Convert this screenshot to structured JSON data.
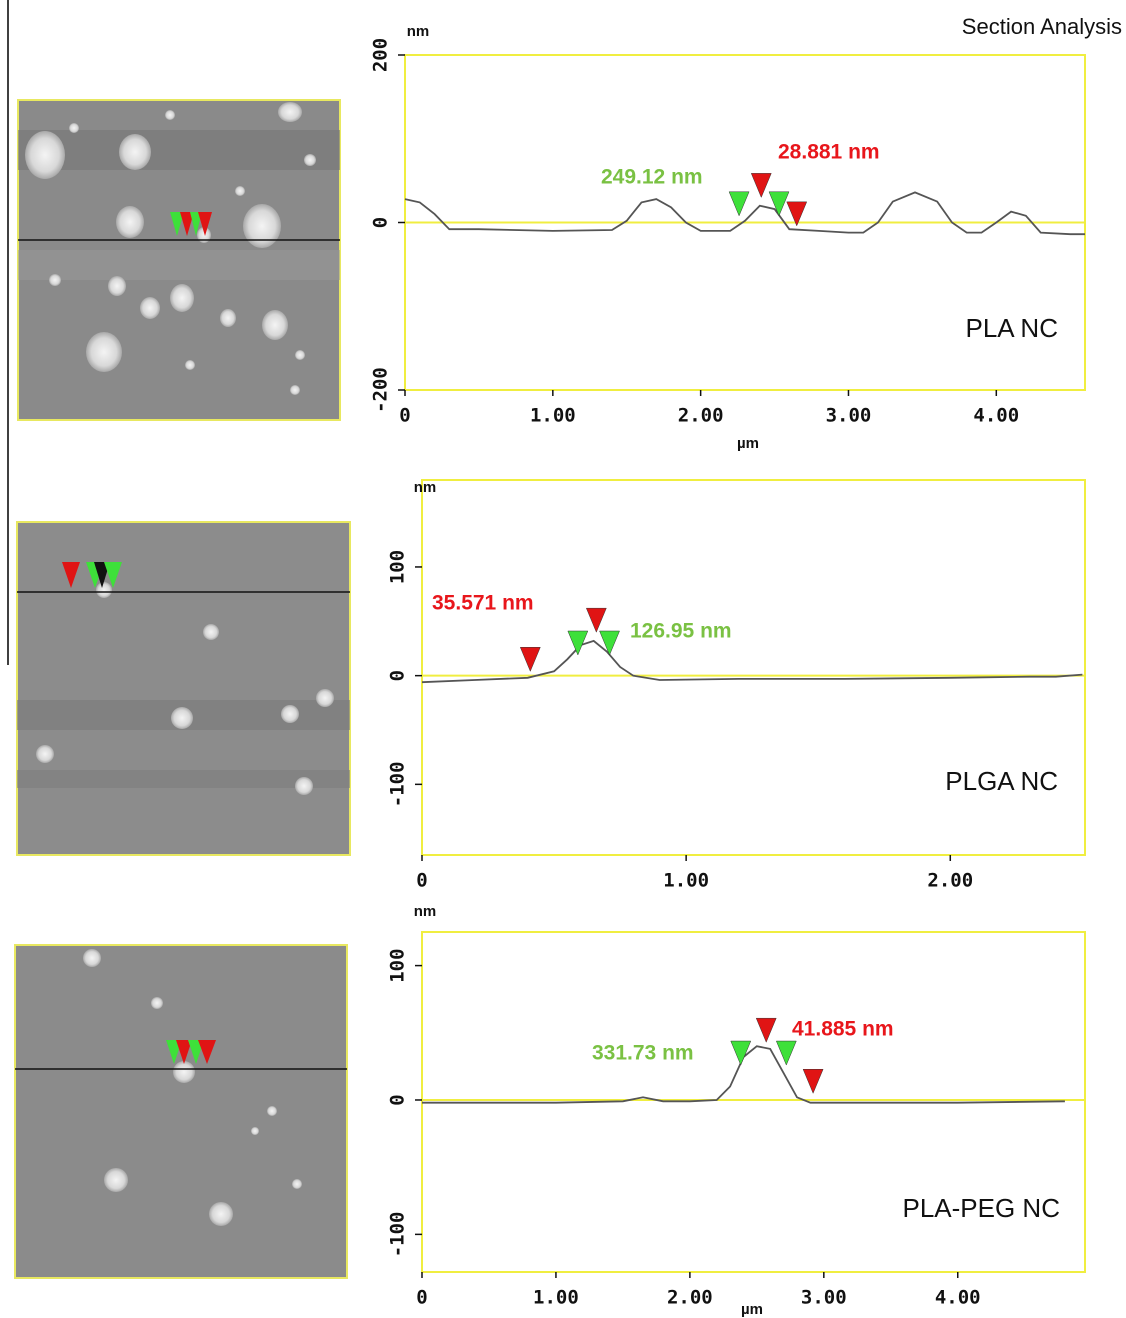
{
  "chart_data": [
    {
      "type": "line",
      "title": "Section Analysis",
      "y_label": "nm",
      "x_label": "µm",
      "sample": "PLA NC",
      "xlim": [
        0,
        4.6
      ],
      "ylim": [
        -200,
        200
      ],
      "xticks": [
        0,
        {
          "value": 1,
          "label": "1.00"
        },
        {
          "value": 2,
          "label": "2.00"
        },
        {
          "value": 3,
          "label": "3.00"
        },
        {
          "value": 4,
          "label": "4.00"
        }
      ],
      "yticks": [
        -200,
        0,
        200
      ],
      "x": [
        0,
        0.1,
        0.2,
        0.3,
        0.5,
        1.0,
        1.4,
        1.5,
        1.6,
        1.7,
        1.8,
        1.9,
        2.0,
        2.2,
        2.3,
        2.4,
        2.5,
        2.6,
        2.8,
        3.0,
        3.1,
        3.2,
        3.3,
        3.45,
        3.6,
        3.7,
        3.8,
        3.9,
        4.0,
        4.1,
        4.2,
        4.3,
        4.5,
        4.6
      ],
      "series": [
        {
          "color": "#555555",
          "values": [
            28,
            24,
            10,
            -8,
            -8,
            -10,
            -9,
            2,
            24,
            28,
            18,
            0,
            -10,
            -10,
            2,
            20,
            16,
            -8,
            -10,
            -12,
            -12,
            0,
            25,
            36,
            25,
            0,
            -12,
            -12,
            0,
            13,
            8,
            -12,
            -14,
            -14
          ]
        }
      ],
      "markers": [
        {
          "x": 2.26,
          "y": 8,
          "color": "#3ee03a"
        },
        {
          "x": 2.41,
          "y": 30,
          "color": "#e01414"
        },
        {
          "x": 2.53,
          "y": 8,
          "color": "#3ee03a"
        },
        {
          "x": 2.65,
          "y": -4,
          "color": "#e01414"
        }
      ],
      "annotations": [
        {
          "text": "249.12 nm",
          "color": "#7ac143"
        },
        {
          "text": "28.881 nm",
          "color": "#e8161b"
        }
      ]
    },
    {
      "type": "line",
      "y_label": "nm",
      "sample": "PLGA NC",
      "xlim": [
        0,
        2.51
      ],
      "ylim": [
        -165,
        180
      ],
      "xticks": [
        0,
        {
          "value": 1,
          "label": "1.00"
        },
        {
          "value": 2,
          "label": "2.00"
        }
      ],
      "yticks": [
        -100,
        0,
        100
      ],
      "x": [
        0,
        0.2,
        0.4,
        0.5,
        0.55,
        0.6,
        0.65,
        0.7,
        0.75,
        0.8,
        0.9,
        1.2,
        1.6,
        2.0,
        2.3,
        2.4,
        2.5
      ],
      "series": [
        {
          "color": "#555555",
          "values": [
            -6,
            -4,
            -2,
            4,
            15,
            28,
            32,
            22,
            8,
            0,
            -4,
            -3,
            -3,
            -2,
            -1,
            -1,
            1
          ]
        }
      ],
      "markers": [
        {
          "x": 0.41,
          "y": 4,
          "color": "#e01414"
        },
        {
          "x": 0.59,
          "y": 19,
          "color": "#3ee03a"
        },
        {
          "x": 0.66,
          "y": 40,
          "color": "#e01414"
        },
        {
          "x": 0.71,
          "y": 19,
          "color": "#3ee03a"
        }
      ],
      "annotations": [
        {
          "text": "35.571 nm",
          "color": "#e8161b"
        },
        {
          "text": "126.95 nm",
          "color": "#7ac143"
        }
      ]
    },
    {
      "type": "line",
      "y_label": "nm",
      "x_label": "µm",
      "sample": "PLA-PEG NC",
      "xlim": [
        0,
        4.95
      ],
      "ylim": [
        -128,
        125
      ],
      "xticks": [
        0,
        {
          "value": 1,
          "label": "1.00"
        },
        {
          "value": 2,
          "label": "2.00"
        },
        {
          "value": 3,
          "label": "3.00"
        },
        {
          "value": 4,
          "label": "4.00"
        }
      ],
      "yticks": [
        -100,
        0,
        100
      ],
      "x": [
        0,
        0.5,
        1.0,
        1.5,
        1.65,
        1.8,
        2.0,
        2.2,
        2.3,
        2.4,
        2.5,
        2.6,
        2.7,
        2.8,
        2.9,
        3.2,
        4.0,
        4.8
      ],
      "series": [
        {
          "color": "#555555",
          "values": [
            -2,
            -2,
            -2,
            -1,
            2,
            -1,
            -1,
            0,
            10,
            32,
            40,
            38,
            20,
            2,
            -2,
            -2,
            -2,
            -1
          ]
        }
      ],
      "markers": [
        {
          "x": 2.38,
          "y": 26,
          "color": "#3ee03a"
        },
        {
          "x": 2.57,
          "y": 43,
          "color": "#e01414"
        },
        {
          "x": 2.72,
          "y": 26,
          "color": "#3ee03a"
        },
        {
          "x": 2.92,
          "y": 5,
          "color": "#e01414"
        }
      ],
      "annotations": [
        {
          "text": "331.73 nm",
          "color": "#7ac143"
        },
        {
          "text": "41.885 nm",
          "color": "#e8161b"
        }
      ]
    }
  ]
}
